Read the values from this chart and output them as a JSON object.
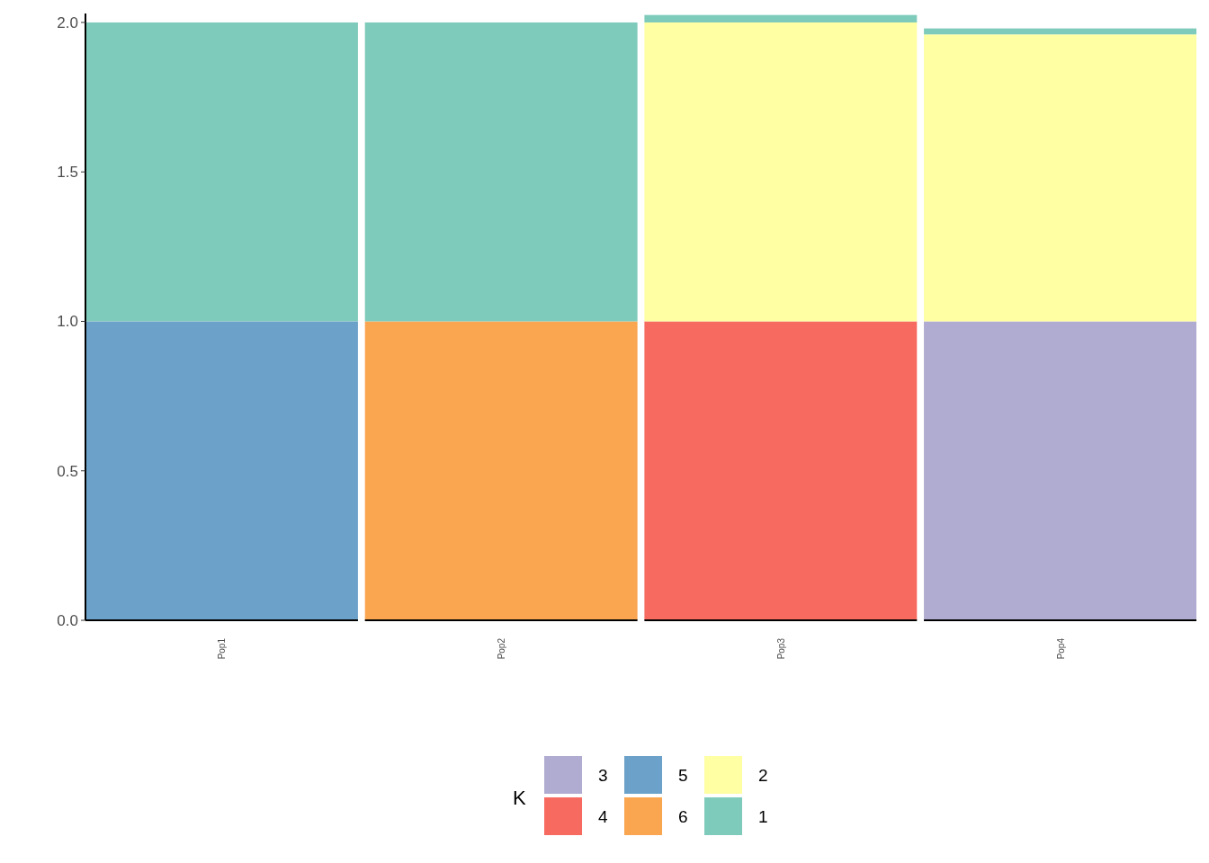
{
  "chart_data": {
    "type": "bar",
    "stacked": true,
    "categories": [
      "Pop1",
      "Pop2",
      "Pop3",
      "Pop4"
    ],
    "series": [
      {
        "name": "3",
        "color": "#b0abd0",
        "values": [
          0,
          0,
          0,
          1
        ]
      },
      {
        "name": "4",
        "color": "#f66a60",
        "values": [
          0,
          0,
          1,
          0
        ]
      },
      {
        "name": "5",
        "color": "#6ca2c9",
        "values": [
          1,
          0,
          0,
          0
        ]
      },
      {
        "name": "6",
        "color": "#faa550",
        "values": [
          0,
          1,
          0,
          0
        ]
      },
      {
        "name": "2",
        "color": "#ffffa3",
        "values": [
          0,
          0,
          1,
          0.96
        ]
      },
      {
        "name": "1",
        "color": "#7fcbbb",
        "values": [
          1,
          1,
          0.025,
          0.02
        ]
      }
    ],
    "ylim": [
      0,
      2.03
    ],
    "yticks": [
      {
        "value": 0,
        "label": "0.0"
      },
      {
        "value": 0.5,
        "label": "0.5"
      },
      {
        "value": 1,
        "label": "1.0"
      },
      {
        "value": 1.5,
        "label": "1.5"
      },
      {
        "value": 2,
        "label": "2.0"
      }
    ],
    "legend": "bottom",
    "legend_title": "K",
    "grid": false
  }
}
